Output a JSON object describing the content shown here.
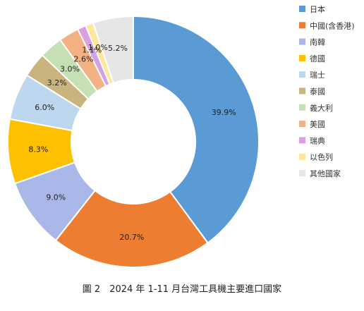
{
  "chart_data": {
    "type": "pie",
    "donut": true,
    "title": "圖 2　2024 年 1-11 月台灣工具機主要進口國家",
    "legend_position": "right",
    "series": [
      {
        "name": "日本",
        "label": "39.9%",
        "value": 39.9,
        "color": "#5B9BD5"
      },
      {
        "name": "中國(含香港)",
        "label": "20.7%",
        "value": 20.7,
        "color": "#ED7D31"
      },
      {
        "name": "南韓",
        "label": "9.0%",
        "value": 9.0,
        "color": "#A9B8E8"
      },
      {
        "name": "德國",
        "label": "8.3%",
        "value": 8.3,
        "color": "#FFC000"
      },
      {
        "name": "瑞士",
        "label": "6.0%",
        "value": 6.0,
        "color": "#BDD7EE"
      },
      {
        "name": "泰國",
        "label": "3.2%",
        "value": 3.2,
        "color": "#C9B37E"
      },
      {
        "name": "義大利",
        "label": "3.0%",
        "value": 3.0,
        "color": "#C5E0B4"
      },
      {
        "name": "美國",
        "label": "2.6%",
        "value": 2.6,
        "color": "#F4B183"
      },
      {
        "name": "瑞典",
        "label": "1.1%",
        "value": 1.1,
        "color": "#D9A0E0"
      },
      {
        "name": "以色列",
        "label": "1.0%",
        "value": 1.0,
        "color": "#FFE699"
      },
      {
        "name": "其他國家",
        "label": "5.2%",
        "value": 5.2,
        "color": "#E7E6E6"
      }
    ]
  }
}
